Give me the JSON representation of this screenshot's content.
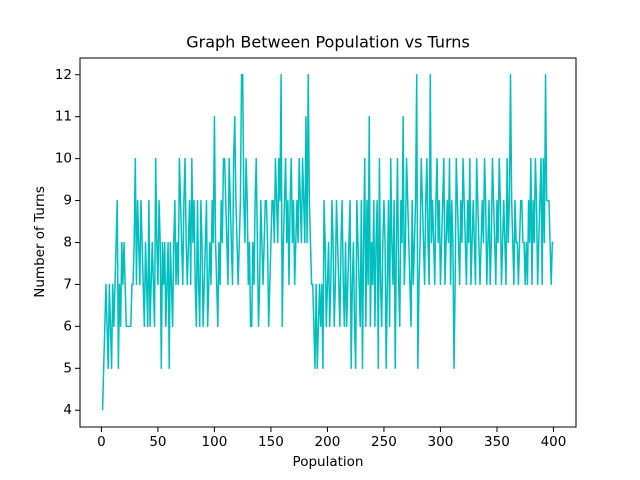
{
  "chart_data": {
    "type": "line",
    "title": "Graph Between Population vs Turns",
    "xlabel": "Population",
    "ylabel": "Number of Turns",
    "color": "#00bfbf",
    "xlim": [
      -18.95,
      419.95
    ],
    "ylim": [
      3.6,
      12.4
    ],
    "xticks": [
      0,
      50,
      100,
      150,
      200,
      250,
      300,
      350,
      400
    ],
    "yticks": [
      4,
      5,
      6,
      7,
      8,
      9,
      10,
      11,
      12
    ],
    "grid": false,
    "x": [
      1,
      2,
      3,
      4,
      5,
      6,
      7,
      8,
      9,
      10,
      11,
      12,
      13,
      14,
      15,
      16,
      17,
      18,
      19,
      20,
      21,
      22,
      23,
      24,
      25,
      26,
      27,
      28,
      29,
      30,
      31,
      32,
      33,
      34,
      35,
      36,
      37,
      38,
      39,
      40,
      41,
      42,
      43,
      44,
      45,
      46,
      47,
      48,
      49,
      50,
      51,
      52,
      53,
      54,
      55,
      56,
      57,
      58,
      59,
      60,
      61,
      62,
      63,
      64,
      65,
      66,
      67,
      68,
      69,
      70,
      71,
      72,
      73,
      74,
      75,
      76,
      77,
      78,
      79,
      80,
      81,
      82,
      83,
      84,
      85,
      86,
      87,
      88,
      89,
      90,
      91,
      92,
      93,
      94,
      95,
      96,
      97,
      98,
      99,
      100,
      101,
      102,
      103,
      104,
      105,
      106,
      107,
      108,
      109,
      110,
      111,
      112,
      113,
      114,
      115,
      116,
      117,
      118,
      119,
      120,
      121,
      122,
      123,
      124,
      125,
      126,
      127,
      128,
      129,
      130,
      131,
      132,
      133,
      134,
      135,
      136,
      137,
      138,
      139,
      140,
      141,
      142,
      143,
      144,
      145,
      146,
      147,
      148,
      149,
      150,
      151,
      152,
      153,
      154,
      155,
      156,
      157,
      158,
      159,
      160,
      161,
      162,
      163,
      164,
      165,
      166,
      167,
      168,
      169,
      170,
      171,
      172,
      173,
      174,
      175,
      176,
      177,
      178,
      179,
      180,
      181,
      182,
      183,
      184,
      185,
      186,
      187,
      188,
      189,
      190,
      191,
      192,
      193,
      194,
      195,
      196,
      197,
      198,
      199,
      200,
      201,
      202,
      203,
      204,
      205,
      206,
      207,
      208,
      209,
      210,
      211,
      212,
      213,
      214,
      215,
      216,
      217,
      218,
      219,
      220,
      221,
      222,
      223,
      224,
      225,
      226,
      227,
      228,
      229,
      230,
      231,
      232,
      233,
      234,
      235,
      236,
      237,
      238,
      239,
      240,
      241,
      242,
      243,
      244,
      245,
      246,
      247,
      248,
      249,
      250,
      251,
      252,
      253,
      254,
      255,
      256,
      257,
      258,
      259,
      260,
      261,
      262,
      263,
      264,
      265,
      266,
      267,
      268,
      269,
      270,
      271,
      272,
      273,
      274,
      275,
      276,
      277,
      278,
      279,
      280,
      281,
      282,
      283,
      284,
      285,
      286,
      287,
      288,
      289,
      290,
      291,
      292,
      293,
      294,
      295,
      296,
      297,
      298,
      299,
      300,
      301,
      302,
      303,
      304,
      305,
      306,
      307,
      308,
      309,
      310,
      311,
      312,
      313,
      314,
      315,
      316,
      317,
      318,
      319,
      320,
      321,
      322,
      323,
      324,
      325,
      326,
      327,
      328,
      329,
      330,
      331,
      332,
      333,
      334,
      335,
      336,
      337,
      338,
      339,
      340,
      341,
      342,
      343,
      344,
      345,
      346,
      347,
      348,
      349,
      350,
      351,
      352,
      353,
      354,
      355,
      356,
      357,
      358,
      359,
      360,
      361,
      362,
      363,
      364,
      365,
      366,
      367,
      368,
      369,
      370,
      371,
      372,
      373,
      374,
      375,
      376,
      377,
      378,
      379,
      380,
      381,
      382,
      383,
      384,
      385,
      386,
      387,
      388,
      389,
      390,
      391,
      392,
      393,
      394,
      395,
      396,
      397,
      398,
      399,
      400
    ],
    "values": [
      4,
      5,
      6,
      7,
      6,
      5,
      7,
      6,
      5,
      7,
      6,
      7,
      8,
      9,
      5,
      7,
      6,
      8,
      7,
      8,
      7,
      6,
      6,
      6,
      6,
      6,
      7,
      7,
      8,
      10,
      7,
      9,
      8,
      7,
      9,
      8,
      7,
      6,
      8,
      7,
      6,
      9,
      6,
      7,
      8,
      7,
      6,
      10,
      8,
      7,
      9,
      8,
      5,
      8,
      7,
      8,
      6,
      7,
      8,
      5,
      8,
      7,
      6,
      8,
      9,
      7,
      8,
      7,
      10,
      9,
      8,
      7,
      9,
      10,
      8,
      7,
      8,
      9,
      7,
      10,
      8,
      9,
      7,
      6,
      9,
      7,
      6,
      9,
      8,
      6,
      7,
      8,
      9,
      6,
      7,
      8,
      7,
      9,
      8,
      11,
      8,
      7,
      6,
      8,
      7,
      9,
      8,
      10,
      10,
      9,
      8,
      7,
      10,
      9,
      8,
      7,
      10,
      11,
      9,
      8,
      7,
      8,
      9,
      12,
      12,
      9,
      8,
      10,
      9,
      7,
      8,
      6,
      6,
      8,
      7,
      9,
      10,
      8,
      6,
      7,
      9,
      8,
      7,
      8,
      9,
      9,
      8,
      6,
      7,
      8,
      9,
      9,
      8,
      10,
      9,
      8,
      10,
      9,
      12,
      6,
      8,
      9,
      10,
      8,
      9,
      7,
      9,
      10,
      8,
      9,
      7,
      8,
      9,
      8,
      10,
      9,
      8,
      10,
      9,
      8,
      11,
      8,
      12,
      9,
      8,
      7,
      7,
      6,
      5,
      7,
      5,
      6,
      7,
      6,
      7,
      5,
      9,
      8,
      6,
      7,
      8,
      6,
      7,
      9,
      8,
      6,
      7,
      9,
      8,
      7,
      6,
      8,
      9,
      7,
      6,
      8,
      6,
      7,
      8,
      9,
      5,
      7,
      8,
      6,
      5,
      9,
      8,
      7,
      6,
      9,
      5,
      8,
      10,
      6,
      9,
      7,
      11,
      6,
      8,
      7,
      9,
      6,
      8,
      9,
      5,
      10,
      7,
      6,
      8,
      9,
      8,
      5,
      7,
      9,
      6,
      10,
      8,
      7,
      9,
      5,
      8,
      10,
      7,
      6,
      9,
      8,
      11,
      7,
      8,
      10,
      9,
      8,
      7,
      6,
      9,
      7,
      8,
      9,
      12,
      5,
      7,
      8,
      10,
      9,
      8,
      7,
      9,
      10,
      8,
      7,
      12,
      8,
      9,
      8,
      7,
      9,
      10,
      8,
      9,
      7,
      8,
      9,
      10,
      7,
      8,
      9,
      8,
      10,
      7,
      9,
      8,
      5,
      7,
      10,
      9,
      8,
      7,
      9,
      8,
      10,
      9,
      8,
      7,
      9,
      8,
      10,
      7,
      8,
      9,
      8,
      7,
      10,
      9,
      8,
      7,
      8,
      9,
      8,
      10,
      9,
      7,
      8,
      9,
      7,
      8,
      10,
      9,
      8,
      7,
      9,
      8,
      10,
      9,
      7,
      8,
      9,
      8,
      7,
      10,
      8,
      9,
      12,
      9,
      8,
      7,
      9,
      8,
      8,
      7,
      8,
      9,
      9,
      8,
      8,
      7,
      8,
      7,
      9,
      8,
      10,
      7,
      9,
      8,
      10,
      9,
      7,
      8,
      9,
      10,
      7,
      10,
      8,
      12,
      9,
      9,
      9,
      8,
      7,
      8,
      8
    ]
  }
}
